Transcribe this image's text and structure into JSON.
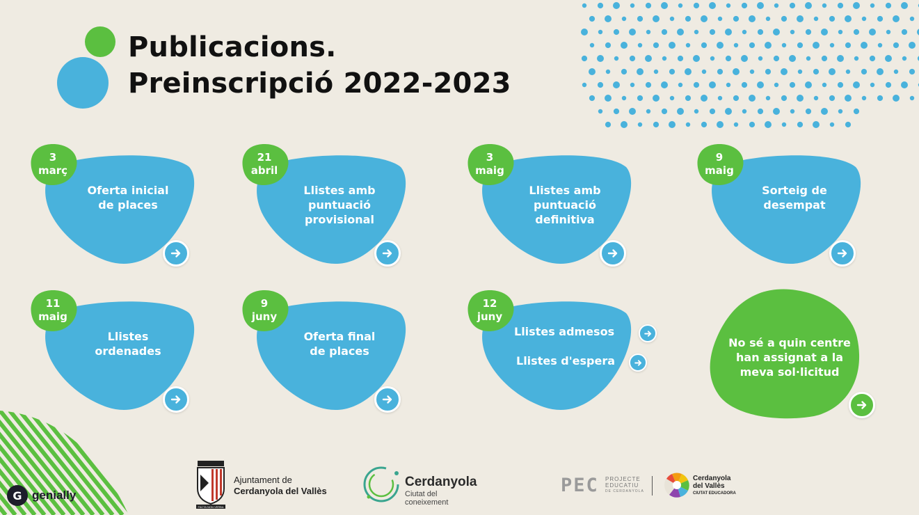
{
  "header": {
    "title_line1": "Publicacions.",
    "title_line2": "Preinscripció 2022-2023"
  },
  "cards": [
    {
      "date_day": "3",
      "date_month": "març",
      "label_lines": [
        "Oferta inicial",
        "de places"
      ]
    },
    {
      "date_day": "21",
      "date_month": "abril",
      "label_lines": [
        "Llistes amb",
        "puntuació",
        "provisional"
      ]
    },
    {
      "date_day": "3",
      "date_month": "maig",
      "label_lines": [
        "Llistes amb",
        "puntuació",
        "definitiva"
      ]
    },
    {
      "date_day": "9",
      "date_month": "maig",
      "label_lines": [
        "Sorteig de",
        "desempat"
      ]
    },
    {
      "date_day": "11",
      "date_month": "maig",
      "label_lines": [
        "Llistes",
        "ordenades"
      ]
    },
    {
      "date_day": "9",
      "date_month": "juny",
      "label_lines": [
        "Oferta final",
        "de places"
      ]
    },
    {
      "date_day": "12",
      "date_month": "juny",
      "links": [
        "Llistes admesos",
        "Llistes d'espera"
      ]
    }
  ],
  "help_card": {
    "label_lines": [
      "No sé a quin centre",
      "han assignat a la",
      "meva sol·licitud"
    ]
  },
  "footer": {
    "ajuntament_line1": "Ajuntament de",
    "ajuntament_line2": "Cerdanyola del Vallès",
    "ajuntament_motto": "FACTA NON VERBA",
    "cerdanyola_name": "Cerdanyola",
    "cerdanyola_sub1": "Ciutat del",
    "cerdanyola_sub2": "coneixement",
    "pec_letters": "PEC",
    "pec_line1": "PROJECTE",
    "pec_line2": "EDUCATIU",
    "pec_line3": "DE CERDANYOLA",
    "educadora_line1": "Cerdanyola",
    "educadora_line2": "del Vallès",
    "educadora_line3": "CIUTAT EDUCADORA"
  },
  "branding": {
    "genially_label": "genially",
    "genially_icon": "G"
  },
  "colors": {
    "background": "#efebe2",
    "blue": "#49b2dc",
    "green": "#5bbf40",
    "text_dark": "#111111"
  },
  "icons": {
    "arrow": "arrow-right-icon"
  }
}
